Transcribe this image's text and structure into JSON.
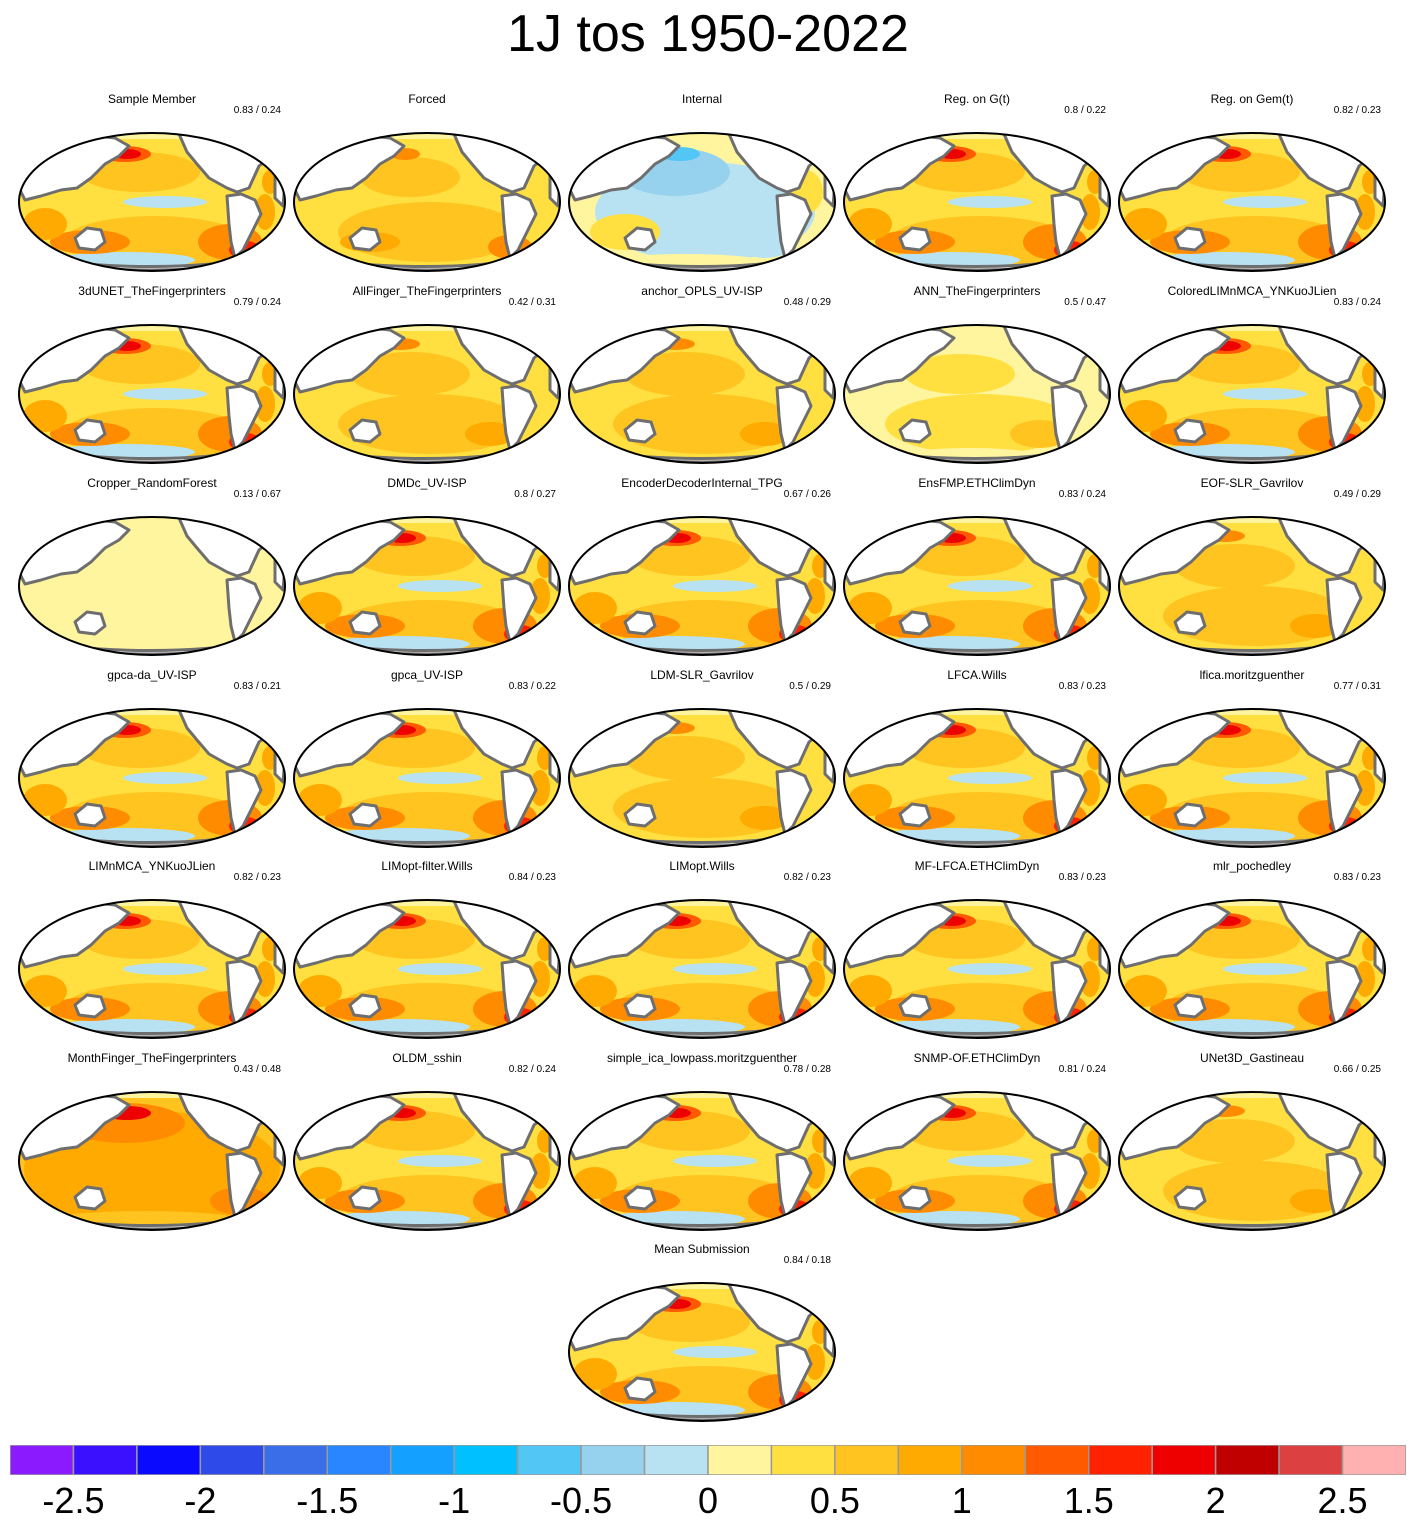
{
  "title": "1J tos 1950-2022",
  "chart_data": {
    "type": "map",
    "variable": "tos",
    "period": "1950-2022",
    "projection": "Robinson (Pacific-centred)",
    "panels": [
      {
        "name": "Sample Member",
        "score": "0.83 / 0.24",
        "style": "member"
      },
      {
        "name": "Forced",
        "score": "",
        "style": "forced"
      },
      {
        "name": "Internal",
        "score": "",
        "style": "internal"
      },
      {
        "name": "Reg. on G(t)",
        "score": "0.8 / 0.22",
        "style": "member"
      },
      {
        "name": "Reg. on Gem(t)",
        "score": "0.82 / 0.23",
        "style": "member"
      },
      {
        "name": "3dUNET_TheFingerprinters",
        "score": "0.79 / 0.24",
        "style": "member"
      },
      {
        "name": "AllFinger_TheFingerprinters",
        "score": "0.42 / 0.31",
        "style": "smooth"
      },
      {
        "name": "anchor_OPLS_UV-ISP",
        "score": "0.48 / 0.29",
        "style": "smooth"
      },
      {
        "name": "ANN_TheFingerprinters",
        "score": "0.5 / 0.47",
        "style": "pale"
      },
      {
        "name": "ColoredLIMnMCA_YNKuoJLien",
        "score": "0.83 / 0.24",
        "style": "member"
      },
      {
        "name": "Cropper_RandomForest",
        "score": "0.13 / 0.67",
        "style": "flat"
      },
      {
        "name": "DMDc_UV-ISP",
        "score": "0.8 / 0.27",
        "style": "member"
      },
      {
        "name": "EncoderDecoderInternal_TPG",
        "score": "0.67 / 0.26",
        "style": "member"
      },
      {
        "name": "EnsFMP.ETHClimDyn",
        "score": "0.83 / 0.24",
        "style": "member"
      },
      {
        "name": "EOF-SLR_Gavrilov",
        "score": "0.49 / 0.29",
        "style": "smooth"
      },
      {
        "name": "gpca-da_UV-ISP",
        "score": "0.83 / 0.21",
        "style": "member"
      },
      {
        "name": "gpca_UV-ISP",
        "score": "0.83 / 0.22",
        "style": "member"
      },
      {
        "name": "LDM-SLR_Gavrilov",
        "score": "0.5 / 0.29",
        "style": "smooth"
      },
      {
        "name": "LFCA.Wills",
        "score": "0.83 / 0.23",
        "style": "member"
      },
      {
        "name": "lfica.moritzguenther",
        "score": "0.77 / 0.31",
        "style": "member"
      },
      {
        "name": "LIMnMCA_YNKuoJLien",
        "score": "0.82 / 0.23",
        "style": "member"
      },
      {
        "name": "LIMopt-filter.Wills",
        "score": "0.84 / 0.23",
        "style": "member"
      },
      {
        "name": "LIMopt.Wills",
        "score": "0.82 / 0.23",
        "style": "member"
      },
      {
        "name": "MF-LFCA.ETHClimDyn",
        "score": "0.83 / 0.23",
        "style": "member"
      },
      {
        "name": "mlr_pochedley",
        "score": "0.83 / 0.23",
        "style": "member"
      },
      {
        "name": "MonthFinger_TheFingerprinters",
        "score": "0.43 / 0.48",
        "style": "warm"
      },
      {
        "name": "OLDM_sshin",
        "score": "0.82 / 0.24",
        "style": "member"
      },
      {
        "name": "simple_ica_lowpass.moritzguenther",
        "score": "0.78 / 0.28",
        "style": "member"
      },
      {
        "name": "SNMP-OF.ETHClimDyn",
        "score": "0.81 / 0.24",
        "style": "member"
      },
      {
        "name": "UNet3D_Gastineau",
        "score": "0.66 / 0.25",
        "style": "smooth"
      },
      {
        "name": "Mean Submission",
        "score": "0.84 / 0.18",
        "style": "member"
      }
    ],
    "colorbar": {
      "colors": [
        "#8b1aff",
        "#3b10ff",
        "#0a0aff",
        "#2e4ae8",
        "#3a6ee8",
        "#2a86ff",
        "#14a0ff",
        "#00c0ff",
        "#52c6f5",
        "#96d2ee",
        "#b8e2f2",
        "#fff59e",
        "#ffe040",
        "#ffc41f",
        "#ffaa00",
        "#ff8c00",
        "#ff5a00",
        "#ff2200",
        "#ef0000",
        "#c00000",
        "#dc4040",
        "#ffb0b0"
      ],
      "ticks": [
        "-2.5",
        "-2",
        "-1.5",
        "-1",
        "-0.5",
        "0",
        "0.5",
        "1",
        "1.5",
        "2",
        "2.5"
      ],
      "tick_values": [
        -2.5,
        -2,
        -1.5,
        -1,
        -0.5,
        0,
        0.5,
        1,
        1.5,
        2,
        2.5
      ],
      "range": [
        -2.75,
        2.75
      ]
    }
  }
}
